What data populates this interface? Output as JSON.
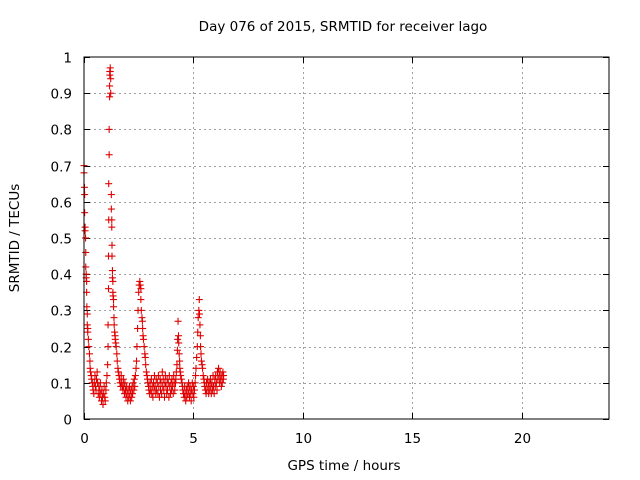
{
  "chart_data": {
    "type": "scatter",
    "title": "Day 076 of 2015, SRMTID for receiver lago",
    "xlabel": "GPS time / hours",
    "ylabel": "SRMTID / TECUs",
    "xlim": [
      0,
      24
    ],
    "ylim": [
      0,
      1
    ],
    "x_ticks": [
      0,
      5,
      10,
      15,
      20
    ],
    "x_tick_labels": [
      "0",
      "5",
      "10",
      "15",
      "20"
    ],
    "y_ticks": [
      0,
      0.1,
      0.2,
      0.3,
      0.4,
      0.5,
      0.6,
      0.7,
      0.8,
      0.9,
      1
    ],
    "y_tick_labels": [
      "0",
      "0.1",
      "0.2",
      "0.3",
      "0.4",
      "0.5",
      "0.6",
      "0.7",
      "0.8",
      "0.9",
      "1"
    ],
    "grid": true,
    "marker": "+",
    "marker_color": "#e00000",
    "series": [
      {
        "name": "SRMTID",
        "points": [
          [
            0.0,
            0.7
          ],
          [
            0.0,
            0.68
          ],
          [
            0.02,
            0.64
          ],
          [
            0.03,
            0.62
          ],
          [
            0.03,
            0.57
          ],
          [
            0.05,
            0.53
          ],
          [
            0.05,
            0.52
          ],
          [
            0.07,
            0.5
          ],
          [
            0.08,
            0.46
          ],
          [
            0.08,
            0.42
          ],
          [
            0.1,
            0.4
          ],
          [
            0.1,
            0.39
          ],
          [
            0.12,
            0.38
          ],
          [
            0.12,
            0.35
          ],
          [
            0.13,
            0.31
          ],
          [
            0.15,
            0.29
          ],
          [
            0.15,
            0.26
          ],
          [
            0.17,
            0.25
          ],
          [
            0.17,
            0.24
          ],
          [
            0.2,
            0.22
          ],
          [
            0.22,
            0.2
          ],
          [
            0.25,
            0.18
          ],
          [
            0.27,
            0.16
          ],
          [
            0.28,
            0.14
          ],
          [
            0.3,
            0.13
          ],
          [
            0.33,
            0.12
          ],
          [
            0.35,
            0.11
          ],
          [
            0.38,
            0.1
          ],
          [
            0.4,
            0.09
          ],
          [
            0.42,
            0.08
          ],
          [
            0.45,
            0.07
          ],
          [
            0.47,
            0.1
          ],
          [
            0.5,
            0.12
          ],
          [
            0.52,
            0.09
          ],
          [
            0.55,
            0.08
          ],
          [
            0.57,
            0.11
          ],
          [
            0.6,
            0.13
          ],
          [
            0.62,
            0.1
          ],
          [
            0.65,
            0.07
          ],
          [
            0.68,
            0.09
          ],
          [
            0.7,
            0.06
          ],
          [
            0.72,
            0.08
          ],
          [
            0.75,
            0.1
          ],
          [
            0.77,
            0.07
          ],
          [
            0.8,
            0.05
          ],
          [
            0.82,
            0.08
          ],
          [
            0.85,
            0.06
          ],
          [
            0.87,
            0.04
          ],
          [
            0.9,
            0.07
          ],
          [
            0.92,
            0.09
          ],
          [
            0.95,
            0.06
          ],
          [
            0.97,
            0.05
          ],
          [
            1.0,
            0.08
          ],
          [
            1.02,
            0.1
          ],
          [
            1.05,
            0.12
          ],
          [
            1.08,
            0.15
          ],
          [
            1.1,
            0.2
          ],
          [
            1.1,
            0.26
          ],
          [
            1.12,
            0.36
          ],
          [
            1.12,
            0.45
          ],
          [
            1.13,
            0.55
          ],
          [
            1.13,
            0.65
          ],
          [
            1.15,
            0.73
          ],
          [
            1.15,
            0.8
          ],
          [
            1.17,
            0.89
          ],
          [
            1.17,
            0.92
          ],
          [
            1.18,
            0.95
          ],
          [
            1.18,
            0.96
          ],
          [
            1.2,
            0.97
          ],
          [
            1.2,
            0.96
          ],
          [
            1.22,
            0.94
          ],
          [
            1.22,
            0.9
          ],
          [
            1.25,
            0.62
          ],
          [
            1.25,
            0.58
          ],
          [
            1.27,
            0.55
          ],
          [
            1.27,
            0.53
          ],
          [
            1.28,
            0.48
          ],
          [
            1.28,
            0.45
          ],
          [
            1.3,
            0.41
          ],
          [
            1.3,
            0.39
          ],
          [
            1.32,
            0.38
          ],
          [
            1.32,
            0.35
          ],
          [
            1.33,
            0.34
          ],
          [
            1.35,
            0.33
          ],
          [
            1.35,
            0.31
          ],
          [
            1.37,
            0.28
          ],
          [
            1.38,
            0.26
          ],
          [
            1.4,
            0.24
          ],
          [
            1.42,
            0.23
          ],
          [
            1.43,
            0.22
          ],
          [
            1.45,
            0.21
          ],
          [
            1.47,
            0.2
          ],
          [
            1.5,
            0.18
          ],
          [
            1.52,
            0.16
          ],
          [
            1.55,
            0.14
          ],
          [
            1.57,
            0.13
          ],
          [
            1.6,
            0.12
          ],
          [
            1.62,
            0.11
          ],
          [
            1.65,
            0.1
          ],
          [
            1.68,
            0.09
          ],
          [
            1.7,
            0.12
          ],
          [
            1.72,
            0.1
          ],
          [
            1.75,
            0.09
          ],
          [
            1.78,
            0.08
          ],
          [
            1.8,
            0.11
          ],
          [
            1.82,
            0.09
          ],
          [
            1.85,
            0.07
          ],
          [
            1.87,
            0.1
          ],
          [
            1.9,
            0.08
          ],
          [
            1.92,
            0.06
          ],
          [
            1.95,
            0.09
          ],
          [
            1.97,
            0.07
          ],
          [
            2.0,
            0.05
          ],
          [
            2.02,
            0.08
          ],
          [
            2.05,
            0.06
          ],
          [
            2.08,
            0.09
          ],
          [
            2.1,
            0.07
          ],
          [
            2.12,
            0.05
          ],
          [
            2.15,
            0.08
          ],
          [
            2.18,
            0.06
          ],
          [
            2.2,
            0.09
          ],
          [
            2.22,
            0.07
          ],
          [
            2.25,
            0.1
          ],
          [
            2.28,
            0.08
          ],
          [
            2.3,
            0.11
          ],
          [
            2.32,
            0.09
          ],
          [
            2.35,
            0.12
          ],
          [
            2.38,
            0.14
          ],
          [
            2.4,
            0.16
          ],
          [
            2.42,
            0.2
          ],
          [
            2.45,
            0.25
          ],
          [
            2.47,
            0.3
          ],
          [
            2.5,
            0.35
          ],
          [
            2.52,
            0.37
          ],
          [
            2.55,
            0.38
          ],
          [
            2.57,
            0.37
          ],
          [
            2.6,
            0.36
          ],
          [
            2.6,
            0.33
          ],
          [
            2.62,
            0.3
          ],
          [
            2.65,
            0.28
          ],
          [
            2.67,
            0.27
          ],
          [
            2.68,
            0.25
          ],
          [
            2.7,
            0.23
          ],
          [
            2.72,
            0.22
          ],
          [
            2.75,
            0.2
          ],
          [
            2.78,
            0.18
          ],
          [
            2.8,
            0.17
          ],
          [
            2.82,
            0.15
          ],
          [
            2.85,
            0.13
          ],
          [
            2.88,
            0.12
          ],
          [
            2.9,
            0.11
          ],
          [
            2.92,
            0.1
          ],
          [
            2.95,
            0.09
          ],
          [
            2.97,
            0.08
          ],
          [
            3.0,
            0.07
          ],
          [
            3.02,
            0.1
          ],
          [
            3.05,
            0.08
          ],
          [
            3.08,
            0.11
          ],
          [
            3.1,
            0.07
          ],
          [
            3.12,
            0.09
          ],
          [
            3.15,
            0.06
          ],
          [
            3.18,
            0.1
          ],
          [
            3.2,
            0.08
          ],
          [
            3.22,
            0.12
          ],
          [
            3.25,
            0.09
          ],
          [
            3.28,
            0.07
          ],
          [
            3.3,
            0.11
          ],
          [
            3.32,
            0.08
          ],
          [
            3.35,
            0.1
          ],
          [
            3.38,
            0.07
          ],
          [
            3.4,
            0.12
          ],
          [
            3.42,
            0.09
          ],
          [
            3.45,
            0.06
          ],
          [
            3.48,
            0.11
          ],
          [
            3.5,
            0.08
          ],
          [
            3.52,
            0.1
          ],
          [
            3.55,
            0.07
          ],
          [
            3.58,
            0.13
          ],
          [
            3.6,
            0.09
          ],
          [
            3.62,
            0.11
          ],
          [
            3.65,
            0.08
          ],
          [
            3.68,
            0.06
          ],
          [
            3.7,
            0.1
          ],
          [
            3.72,
            0.12
          ],
          [
            3.75,
            0.09
          ],
          [
            3.78,
            0.07
          ],
          [
            3.8,
            0.11
          ],
          [
            3.82,
            0.08
          ],
          [
            3.85,
            0.1
          ],
          [
            3.88,
            0.06
          ],
          [
            3.9,
            0.12
          ],
          [
            3.92,
            0.09
          ],
          [
            3.95,
            0.07
          ],
          [
            3.98,
            0.1
          ],
          [
            4.0,
            0.08
          ],
          [
            4.02,
            0.11
          ],
          [
            4.05,
            0.09
          ],
          [
            4.08,
            0.07
          ],
          [
            4.1,
            0.12
          ],
          [
            4.12,
            0.1
          ],
          [
            4.15,
            0.08
          ],
          [
            4.18,
            0.1
          ],
          [
            4.2,
            0.11
          ],
          [
            4.22,
            0.13
          ],
          [
            4.25,
            0.15
          ],
          [
            4.27,
            0.19
          ],
          [
            4.28,
            0.22
          ],
          [
            4.3,
            0.27
          ],
          [
            4.32,
            0.23
          ],
          [
            4.33,
            0.21
          ],
          [
            4.35,
            0.18
          ],
          [
            4.37,
            0.16
          ],
          [
            4.38,
            0.14
          ],
          [
            4.4,
            0.13
          ],
          [
            4.42,
            0.12
          ],
          [
            4.45,
            0.11
          ],
          [
            4.48,
            0.1
          ],
          [
            4.5,
            0.09
          ],
          [
            4.52,
            0.08
          ],
          [
            4.55,
            0.07
          ],
          [
            4.58,
            0.06
          ],
          [
            4.6,
            0.09
          ],
          [
            4.62,
            0.07
          ],
          [
            4.65,
            0.05
          ],
          [
            4.68,
            0.08
          ],
          [
            4.7,
            0.06
          ],
          [
            4.72,
            0.09
          ],
          [
            4.75,
            0.07
          ],
          [
            4.78,
            0.1
          ],
          [
            4.8,
            0.08
          ],
          [
            4.82,
            0.06
          ],
          [
            4.85,
            0.09
          ],
          [
            4.88,
            0.07
          ],
          [
            4.9,
            0.05
          ],
          [
            4.92,
            0.08
          ],
          [
            4.95,
            0.1
          ],
          [
            4.98,
            0.07
          ],
          [
            5.0,
            0.09
          ],
          [
            5.02,
            0.06
          ],
          [
            5.05,
            0.08
          ],
          [
            5.08,
            0.1
          ],
          [
            5.1,
            0.12
          ],
          [
            5.12,
            0.14
          ],
          [
            5.15,
            0.17
          ],
          [
            5.18,
            0.2
          ],
          [
            5.2,
            0.24
          ],
          [
            5.22,
            0.28
          ],
          [
            5.25,
            0.3
          ],
          [
            5.27,
            0.33
          ],
          [
            5.28,
            0.29
          ],
          [
            5.3,
            0.26
          ],
          [
            5.32,
            0.23
          ],
          [
            5.33,
            0.2
          ],
          [
            5.35,
            0.18
          ],
          [
            5.37,
            0.16
          ],
          [
            5.4,
            0.15
          ],
          [
            5.42,
            0.14
          ],
          [
            5.45,
            0.12
          ],
          [
            5.48,
            0.11
          ],
          [
            5.5,
            0.1
          ],
          [
            5.52,
            0.09
          ],
          [
            5.55,
            0.08
          ],
          [
            5.58,
            0.07
          ],
          [
            5.6,
            0.1
          ],
          [
            5.62,
            0.08
          ],
          [
            5.65,
            0.11
          ],
          [
            5.68,
            0.09
          ],
          [
            5.7,
            0.07
          ],
          [
            5.72,
            0.1
          ],
          [
            5.75,
            0.08
          ],
          [
            5.78,
            0.11
          ],
          [
            5.8,
            0.09
          ],
          [
            5.82,
            0.07
          ],
          [
            5.85,
            0.1
          ],
          [
            5.88,
            0.08
          ],
          [
            5.9,
            0.12
          ],
          [
            5.92,
            0.09
          ],
          [
            5.95,
            0.07
          ],
          [
            5.98,
            0.11
          ],
          [
            6.0,
            0.09
          ],
          [
            6.02,
            0.12
          ],
          [
            6.05,
            0.1
          ],
          [
            6.08,
            0.08
          ],
          [
            6.1,
            0.13
          ],
          [
            6.12,
            0.11
          ],
          [
            6.15,
            0.14
          ],
          [
            6.18,
            0.12
          ],
          [
            6.2,
            0.1
          ],
          [
            6.22,
            0.13
          ],
          [
            6.25,
            0.11
          ],
          [
            6.28,
            0.09
          ],
          [
            6.3,
            0.12
          ],
          [
            6.32,
            0.1
          ],
          [
            6.35,
            0.13
          ],
          [
            6.37,
            0.11
          ],
          [
            6.38,
            0.12
          ]
        ]
      }
    ]
  }
}
